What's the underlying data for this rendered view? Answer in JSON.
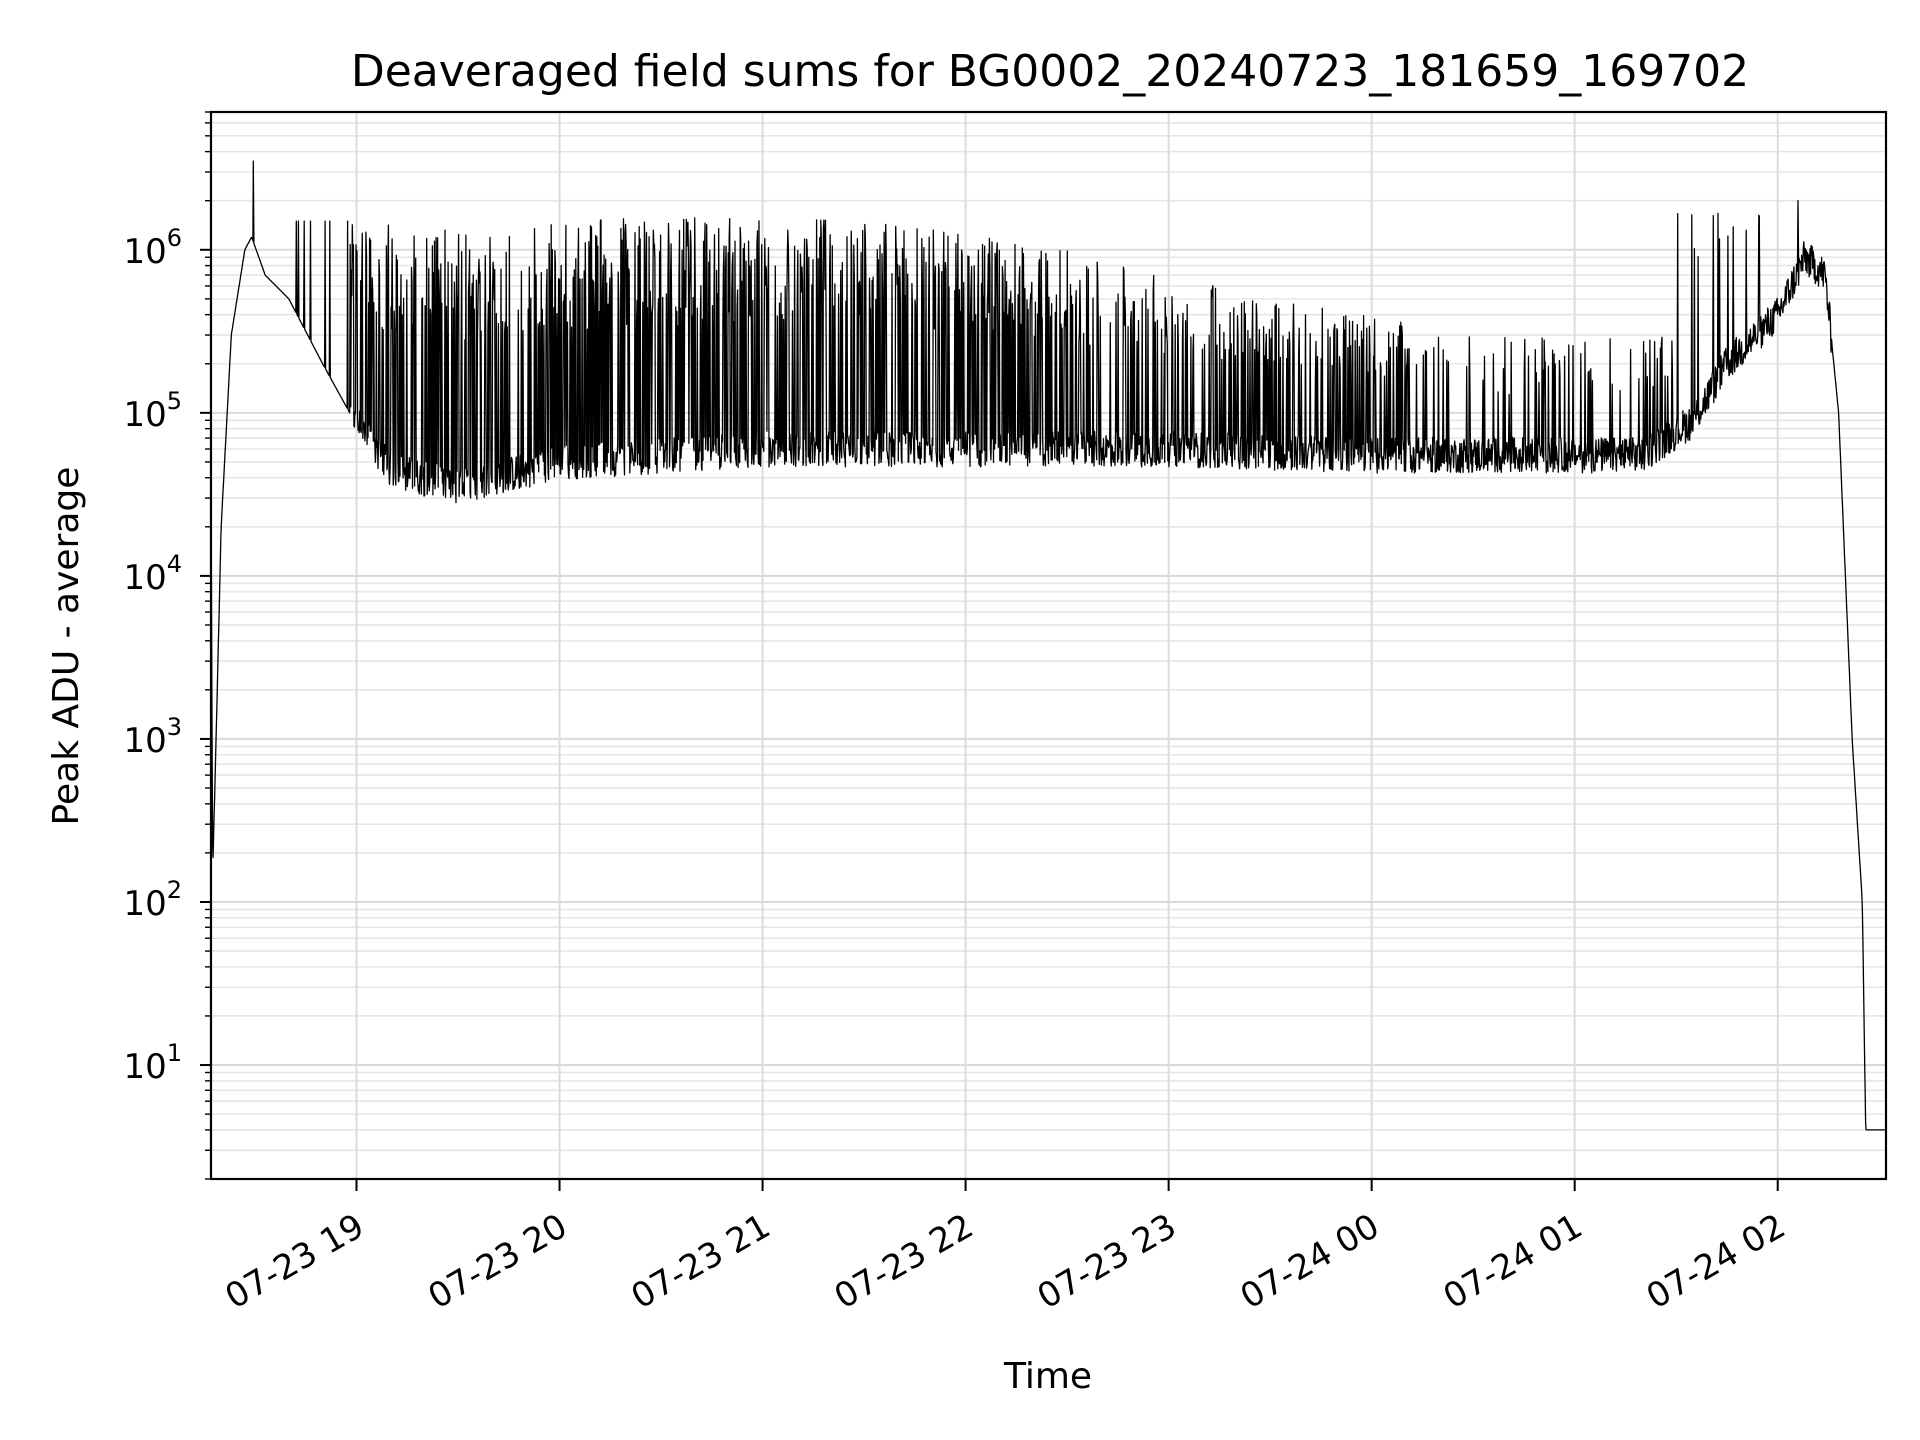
{
  "chart_data": {
    "type": "line",
    "title": "Deaveraged field sums for BG0002_20240723_181659_169702",
    "xlabel": "Time",
    "ylabel": "Peak ADU - average",
    "x_start": "2024-07-23T18:17:00",
    "x_end": "2024-07-24T02:32:00",
    "xlim": [
      "2024-07-23T18:17:00",
      "2024-07-24T02:32:00"
    ],
    "ylim": [
      2,
      7000000
    ],
    "yscale": "log",
    "grid": true,
    "x_ticks": [
      {
        "value": "2024-07-23T19:00:00",
        "label": "07-23 19"
      },
      {
        "value": "2024-07-23T20:00:00",
        "label": "07-23 20"
      },
      {
        "value": "2024-07-23T21:00:00",
        "label": "07-23 21"
      },
      {
        "value": "2024-07-23T22:00:00",
        "label": "07-23 22"
      },
      {
        "value": "2024-07-23T23:00:00",
        "label": "07-23 23"
      },
      {
        "value": "2024-07-24T00:00:00",
        "label": "07-24 00"
      },
      {
        "value": "2024-07-24T01:00:00",
        "label": "07-24 01"
      },
      {
        "value": "2024-07-24T02:00:00",
        "label": "07-24 02"
      }
    ],
    "y_ticks": [
      {
        "value": 10,
        "base": "10",
        "exp": "1"
      },
      {
        "value": 100,
        "base": "10",
        "exp": "2"
      },
      {
        "value": 1000,
        "base": "10",
        "exp": "3"
      },
      {
        "value": 10000,
        "base": "10",
        "exp": "4"
      },
      {
        "value": 100000,
        "base": "10",
        "exp": "5"
      },
      {
        "value": 1000000,
        "base": "10",
        "exp": "6"
      }
    ],
    "series": [
      {
        "color": "#000000",
        "baseline_profile": [
          {
            "x": "2024-07-23T18:17:00",
            "y": 40000
          },
          {
            "x": "2024-07-23T18:17:30",
            "y": 150
          },
          {
            "x": "2024-07-23T18:18:30",
            "y": 1000
          },
          {
            "x": "2024-07-23T18:20:00",
            "y": 20000
          },
          {
            "x": "2024-07-23T18:23:00",
            "y": 300000
          },
          {
            "x": "2024-07-23T18:27:00",
            "y": 1000000
          },
          {
            "x": "2024-07-23T18:29:00",
            "y": 1200000
          },
          {
            "x": "2024-07-23T18:33:00",
            "y": 700000
          },
          {
            "x": "2024-07-23T18:40:00",
            "y": 500000
          },
          {
            "x": "2024-07-23T18:50:00",
            "y": 200000
          },
          {
            "x": "2024-07-23T18:58:00",
            "y": 100000
          },
          {
            "x": "2024-07-23T19:10:00",
            "y": 45000
          },
          {
            "x": "2024-07-23T19:30:00",
            "y": 35000
          },
          {
            "x": "2024-07-23T20:00:00",
            "y": 50000
          },
          {
            "x": "2024-07-23T21:00:00",
            "y": 60000
          },
          {
            "x": "2024-07-23T22:00:00",
            "y": 60000
          },
          {
            "x": "2024-07-23T23:00:00",
            "y": 60000
          },
          {
            "x": "2024-07-24T00:00:00",
            "y": 55000
          },
          {
            "x": "2024-07-24T00:30:00",
            "y": 55000
          },
          {
            "x": "2024-07-24T01:00:00",
            "y": 55000
          },
          {
            "x": "2024-07-24T01:20:00",
            "y": 55000
          },
          {
            "x": "2024-07-24T01:35:00",
            "y": 90000
          },
          {
            "x": "2024-07-24T01:45:00",
            "y": 200000
          },
          {
            "x": "2024-07-24T02:00:00",
            "y": 400000
          },
          {
            "x": "2024-07-24T02:08:00",
            "y": 900000
          },
          {
            "x": "2024-07-24T02:14:00",
            "y": 700000
          },
          {
            "x": "2024-07-24T02:18:00",
            "y": 100000
          },
          {
            "x": "2024-07-24T02:22:00",
            "y": 1000
          },
          {
            "x": "2024-07-24T02:25:00",
            "y": 100
          },
          {
            "x": "2024-07-24T02:26:00",
            "y": 4
          },
          {
            "x": "2024-07-24T02:32:00",
            "y": 4
          }
        ],
        "spike_ceiling_profile": [
          {
            "x": "2024-07-23T18:30:00",
            "y": 1500000
          },
          {
            "x": "2024-07-23T19:30:00",
            "y": 1400000
          },
          {
            "x": "2024-07-23T20:30:00",
            "y": 1600000
          },
          {
            "x": "2024-07-23T21:30:00",
            "y": 1600000
          },
          {
            "x": "2024-07-23T22:30:00",
            "y": 1000000
          },
          {
            "x": "2024-07-23T23:30:00",
            "y": 500000
          },
          {
            "x": "2024-07-24T00:30:00",
            "y": 300000
          },
          {
            "x": "2024-07-24T01:30:00",
            "y": 300000
          },
          {
            "x": "2024-07-24T02:00:00",
            "y": 500000
          }
        ],
        "peak_points": [
          {
            "x": "2024-07-23T18:29:30",
            "y": 3500000
          },
          {
            "x": "2024-07-24T02:06:00",
            "y": 2000000
          }
        ]
      }
    ]
  }
}
